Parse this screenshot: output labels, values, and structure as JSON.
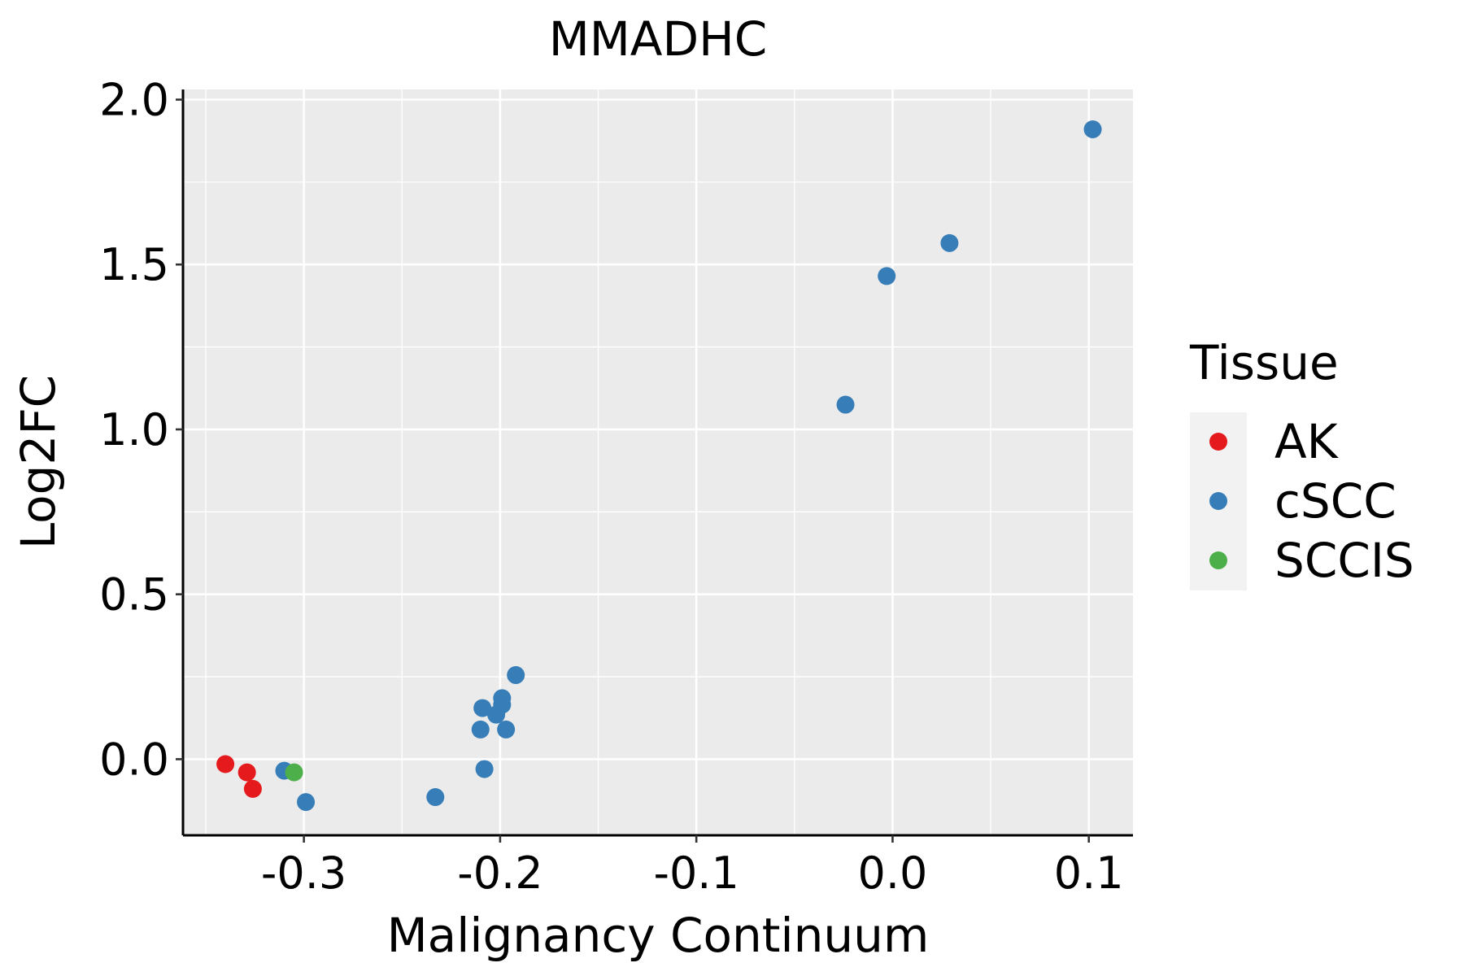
{
  "chart_data": {
    "type": "scatter",
    "title": "MMADHC",
    "xlabel": "Malignancy Continuum",
    "ylabel": "Log2FC",
    "xlim": [
      -0.3616,
      0.1225
    ],
    "ylim": [
      -0.2308,
      2.0308
    ],
    "xticks": [
      -0.3,
      -0.2,
      -0.1,
      0.0,
      0.1
    ],
    "xtick_labels": [
      "-0.3",
      "-0.2",
      "-0.1",
      "0.0",
      "0.1"
    ],
    "yticks": [
      0.0,
      0.5,
      1.0,
      1.5,
      2.0
    ],
    "ytick_labels": [
      "0.0",
      "0.5",
      "1.0",
      "1.5",
      "2.0"
    ],
    "grid": true,
    "legend": {
      "title": "Tissue",
      "position": "right"
    },
    "series": [
      {
        "name": "AK",
        "color": "#E41A1C",
        "points": [
          {
            "x": -0.34,
            "y": -0.015
          },
          {
            "x": -0.329,
            "y": -0.04
          },
          {
            "x": -0.326,
            "y": -0.09
          }
        ]
      },
      {
        "name": "cSCC",
        "color": "#377EB8",
        "points": [
          {
            "x": -0.31,
            "y": -0.035
          },
          {
            "x": -0.299,
            "y": -0.13
          },
          {
            "x": -0.233,
            "y": -0.115
          },
          {
            "x": -0.208,
            "y": -0.03
          },
          {
            "x": -0.21,
            "y": 0.09
          },
          {
            "x": -0.209,
            "y": 0.155
          },
          {
            "x": -0.202,
            "y": 0.135
          },
          {
            "x": -0.199,
            "y": 0.165
          },
          {
            "x": -0.199,
            "y": 0.185
          },
          {
            "x": -0.197,
            "y": 0.09
          },
          {
            "x": -0.192,
            "y": 0.255
          },
          {
            "x": -0.024,
            "y": 1.075
          },
          {
            "x": -0.003,
            "y": 1.465
          },
          {
            "x": 0.029,
            "y": 1.565
          },
          {
            "x": 0.102,
            "y": 1.91
          }
        ]
      },
      {
        "name": "SCCIS",
        "color": "#4DAF4A",
        "points": [
          {
            "x": -0.305,
            "y": -0.04
          }
        ]
      }
    ]
  }
}
